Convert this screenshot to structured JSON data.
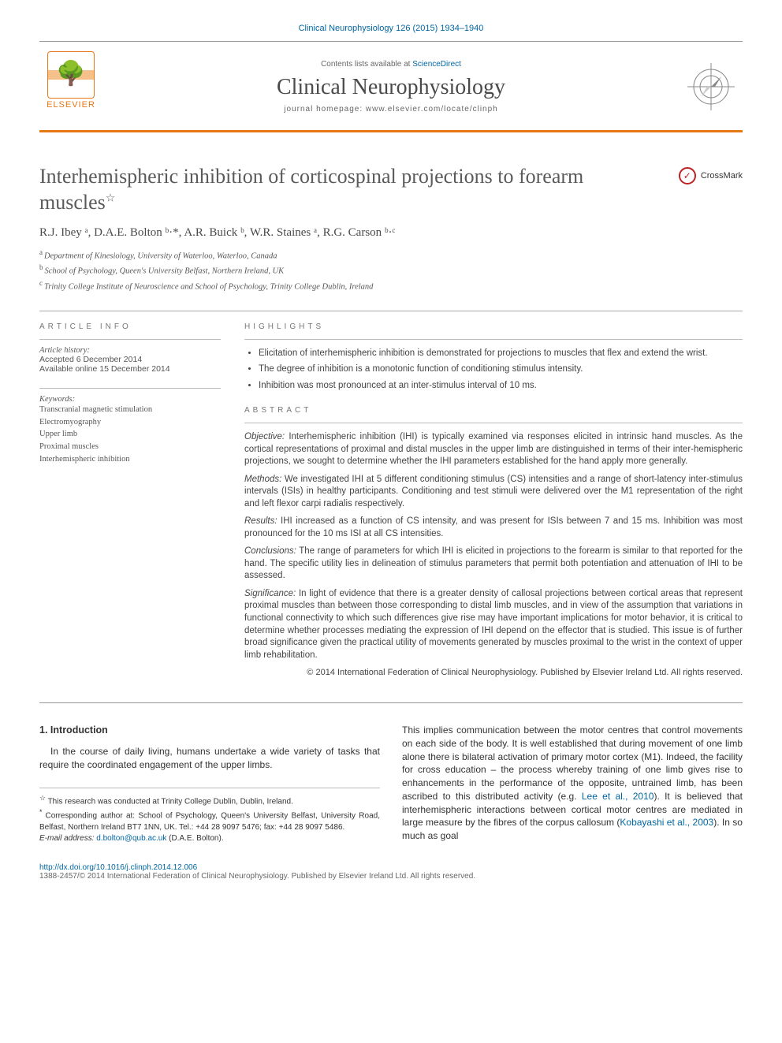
{
  "journal_ref": "Clinical Neurophysiology 126 (2015) 1934–1940",
  "masthead": {
    "contents_prefix": "Contents lists available at ",
    "contents_link": "ScienceDirect",
    "journal_name": "Clinical Neurophysiology",
    "homepage_prefix": "journal homepage: ",
    "homepage": "www.elsevier.com/locate/clinph",
    "publisher": "ELSEVIER"
  },
  "article": {
    "title": "Interhemispheric inhibition of corticospinal projections to forearm muscles",
    "title_note": "☆",
    "crossmark": "CrossMark",
    "authors_html": "R.J. Ibey ᵃ, D.A.E. Bolton ᵇ·*, A.R. Buick ᵇ, W.R. Staines ᵃ, R.G. Carson ᵇ·ᶜ",
    "affiliations": [
      {
        "sup": "a",
        "text": "Department of Kinesiology, University of Waterloo, Waterloo, Canada"
      },
      {
        "sup": "b",
        "text": "School of Psychology, Queen's University Belfast, Northern Ireland, UK"
      },
      {
        "sup": "c",
        "text": "Trinity College Institute of Neuroscience and School of Psychology, Trinity College Dublin, Ireland"
      }
    ]
  },
  "info": {
    "heading": "ARTICLE INFO",
    "history_label": "Article history:",
    "accepted": "Accepted 6 December 2014",
    "online": "Available online 15 December 2014",
    "keywords_label": "Keywords:",
    "keywords": [
      "Transcranial magnetic stimulation",
      "Electromyography",
      "Upper limb",
      "Proximal muscles",
      "Interhemispheric inhibition"
    ]
  },
  "highlights": {
    "heading": "HIGHLIGHTS",
    "items": [
      "Elicitation of interhemispheric inhibition is demonstrated for projections to muscles that flex and extend the wrist.",
      "The degree of inhibition is a monotonic function of conditioning stimulus intensity.",
      "Inhibition was most pronounced at an inter-stimulus interval of 10 ms."
    ]
  },
  "abstract": {
    "heading": "ABSTRACT",
    "sections": [
      {
        "label": "Objective:",
        "text": " Interhemispheric inhibition (IHI) is typically examined via responses elicited in intrinsic hand muscles. As the cortical representations of proximal and distal muscles in the upper limb are distinguished in terms of their inter-hemispheric projections, we sought to determine whether the IHI parameters established for the hand apply more generally."
      },
      {
        "label": "Methods:",
        "text": " We investigated IHI at 5 different conditioning stimulus (CS) intensities and a range of short-latency inter-stimulus intervals (ISIs) in healthy participants. Conditioning and test stimuli were delivered over the M1 representation of the right and left flexor carpi radialis respectively."
      },
      {
        "label": "Results:",
        "text": " IHI increased as a function of CS intensity, and was present for ISIs between 7 and 15 ms. Inhibition was most pronounced for the 10 ms ISI at all CS intensities."
      },
      {
        "label": "Conclusions:",
        "text": " The range of parameters for which IHI is elicited in projections to the forearm is similar to that reported for the hand. The specific utility lies in delineation of stimulus parameters that permit both potentiation and attenuation of IHI to be assessed."
      },
      {
        "label": "Significance:",
        "text": " In light of evidence that there is a greater density of callosal projections between cortical areas that represent proximal muscles than between those corresponding to distal limb muscles, and in view of the assumption that variations in functional connectivity to which such differences give rise may have important implications for motor behavior, it is critical to determine whether processes mediating the expression of IHI depend on the effector that is studied. This issue is of further broad significance given the practical utility of movements generated by muscles proximal to the wrist in the context of upper limb rehabilitation."
      }
    ],
    "copyright": "© 2014 International Federation of Clinical Neurophysiology. Published by Elsevier Ireland Ltd. All rights reserved."
  },
  "body": {
    "section_num": "1.",
    "section_title": "Introduction",
    "col1_p1": "In the course of daily living, humans undertake a wide variety of tasks that require the coordinated engagement of the upper limbs.",
    "col2_p1_a": "This implies communication between the motor centres that control movements on each side of the body. It is well established that during movement of one limb alone there is bilateral activation of primary motor cortex (M1). Indeed, the facility for cross education – the process whereby training of one limb gives rise to enhancements in the performance of the opposite, untrained limb, has been ascribed to this distributed activity (e.g. ",
    "col2_cite1": "Lee et al., 2010",
    "col2_p1_b": "). It is believed that interhemispheric interactions between cortical motor centres are mediated in large measure by the fibres of the corpus callosum (",
    "col2_cite2": "Kobayashi et al., 2003",
    "col2_p1_c": "). In so much as goal"
  },
  "footnotes": {
    "note1": "This research was conducted at Trinity College Dublin, Dublin, Ireland.",
    "note2": "Corresponding author at: School of Psychology, Queen's University Belfast, University Road, Belfast, Northern Ireland BT7 1NN, UK. Tel.: +44 28 9097 5476; fax: +44 28 9097 5486.",
    "email_label": "E-mail address: ",
    "email": "d.bolton@qub.ac.uk",
    "email_whose": " (D.A.E. Bolton)."
  },
  "footer": {
    "doi": "http://dx.doi.org/10.1016/j.clinph.2014.12.006",
    "issn_line": "1388-2457/© 2014 International Federation of Clinical Neurophysiology. Published by Elsevier Ireland Ltd. All rights reserved."
  },
  "colors": {
    "accent_orange": "#e67817",
    "link_blue": "#0066a1",
    "text_gray": "#4a4a4a"
  }
}
